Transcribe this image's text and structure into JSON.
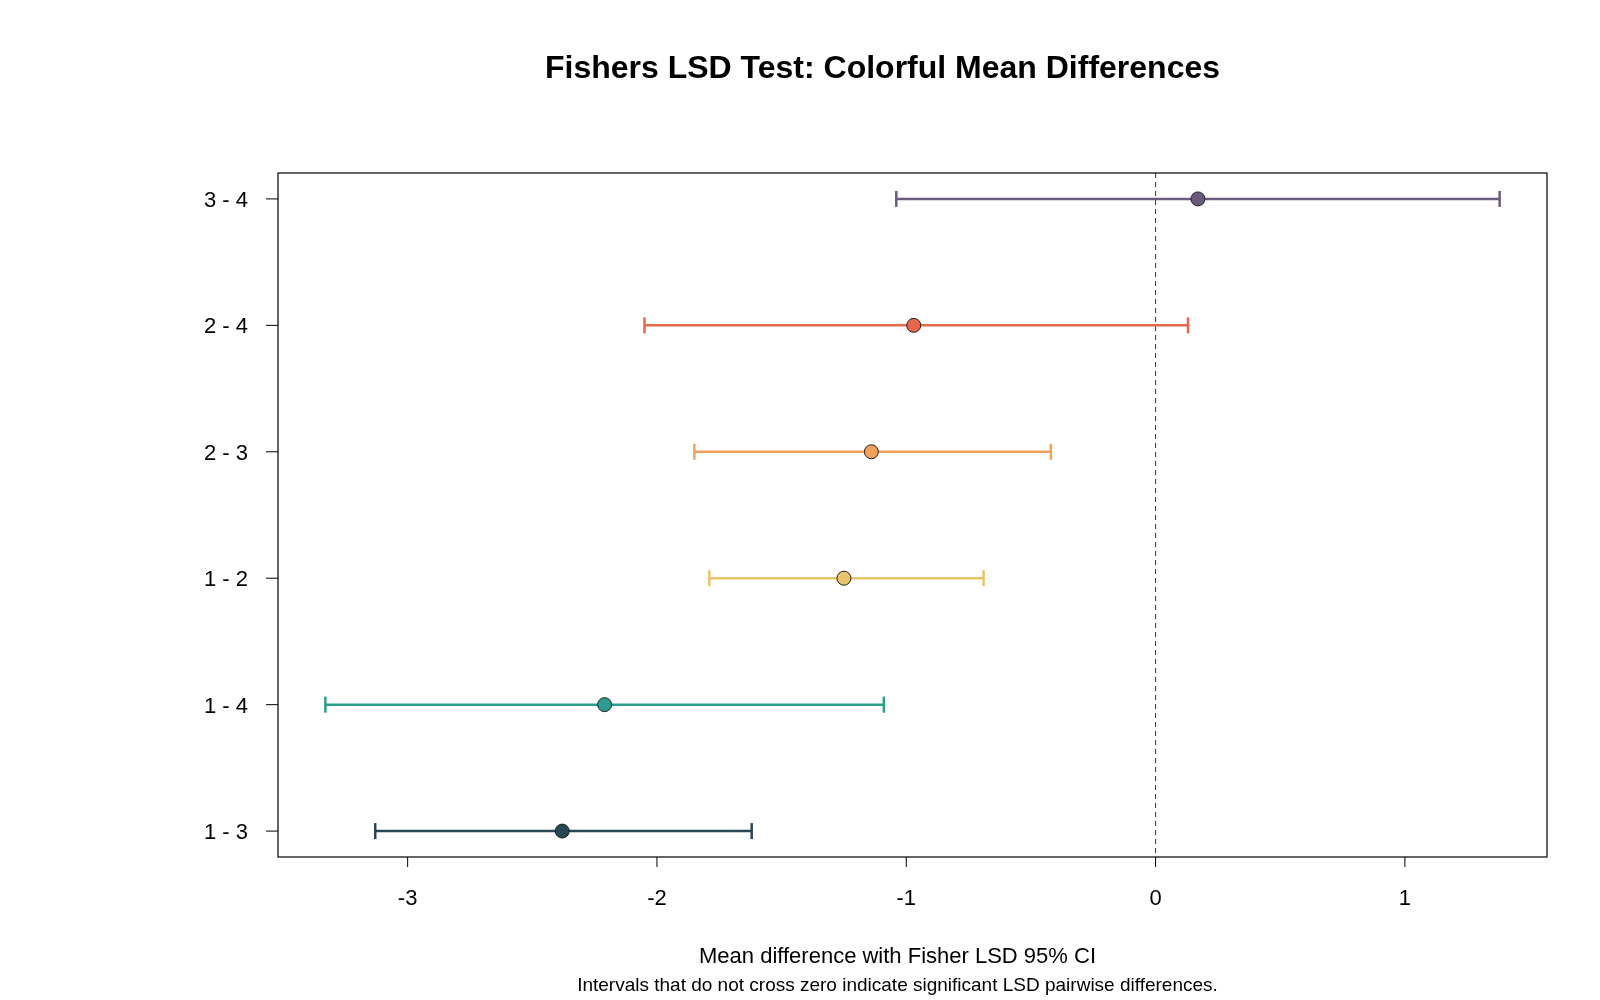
{
  "chart_data": {
    "type": "scatter",
    "orientation": "horizontal",
    "title": "Fishers LSD Test: Colorful Mean Differences",
    "xlabel": "Mean difference with Fisher LSD 95% CI",
    "annotations": [
      "Intervals that do not cross zero indicate significant LSD pairwise differences."
    ],
    "categories": [
      "3 - 4",
      "2 - 4",
      "2 - 3",
      "1 - 2",
      "1 - 4",
      "1 - 3"
    ],
    "values": [
      0.17,
      -0.97,
      -1.14,
      -1.25,
      -2.21,
      -2.38
    ],
    "errors": [
      [
        -1.04,
        1.38
      ],
      [
        -2.05,
        0.13
      ],
      [
        -1.85,
        -0.42
      ],
      [
        -1.79,
        -0.69
      ],
      [
        -3.33,
        -1.09
      ],
      [
        -3.13,
        -1.62
      ]
    ],
    "colors": [
      "#6b5a7e",
      "#e8664a",
      "#f2a05a",
      "#e9c46a",
      "#2a9d8f",
      "#264653"
    ],
    "xlim": [
      -3.52,
      1.57
    ],
    "xticks": [
      -3,
      -2,
      -1,
      0,
      1
    ],
    "ref_lines": [
      {
        "axis": "x",
        "value": 0,
        "line_style": "dashed",
        "color": "#333333"
      }
    ],
    "marker": "circle",
    "grid": false
  }
}
